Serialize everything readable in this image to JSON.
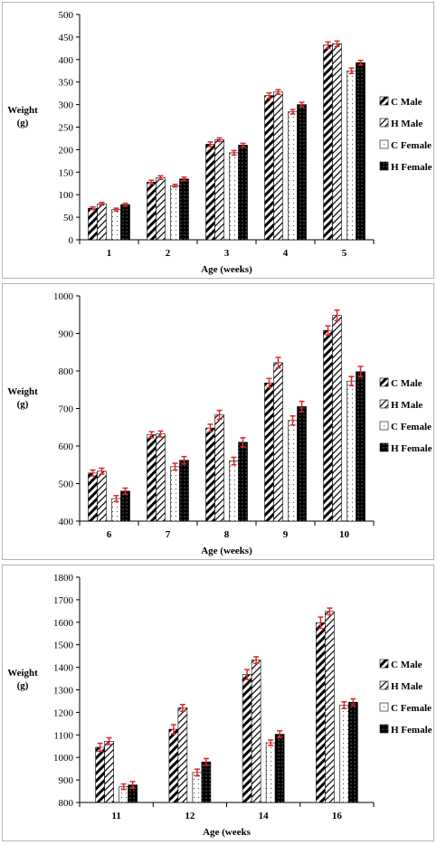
{
  "legend": [
    "C Male",
    "H Male",
    "C Female",
    "H Female"
  ],
  "error_bar_color": "#e0262b",
  "chart_data": [
    {
      "type": "bar",
      "xlabel": "Age (weeks)",
      "ylabel": [
        "Weight",
        "(g)"
      ],
      "ylim": [
        0,
        500
      ],
      "yticks": [
        0,
        50,
        100,
        150,
        200,
        250,
        300,
        350,
        400,
        450,
        500
      ],
      "categories": [
        "1",
        "2",
        "3",
        "4",
        "5"
      ],
      "series": [
        {
          "name": "C Male",
          "values": [
            70,
            128,
            212,
            320,
            432
          ],
          "errors": [
            3,
            4,
            5,
            6,
            7
          ]
        },
        {
          "name": "H Male",
          "values": [
            80,
            138,
            222,
            328,
            435
          ],
          "errors": [
            3,
            4,
            4,
            5,
            6
          ]
        },
        {
          "name": "C Female",
          "values": [
            67,
            120,
            193,
            284,
            375
          ],
          "errors": [
            3,
            3,
            5,
            5,
            6
          ]
        },
        {
          "name": "H Female",
          "values": [
            78,
            135,
            210,
            300,
            393
          ],
          "errors": [
            3,
            4,
            4,
            5,
            5
          ]
        }
      ]
    },
    {
      "type": "bar",
      "xlabel": "Age (weeks)",
      "ylabel": [
        "Weight",
        "(g)"
      ],
      "ylim": [
        400,
        1000
      ],
      "yticks": [
        400,
        500,
        600,
        700,
        800,
        900,
        1000
      ],
      "categories": [
        "6",
        "7",
        "8",
        "9",
        "10"
      ],
      "series": [
        {
          "name": "C Male",
          "values": [
            528,
            630,
            648,
            768,
            908
          ],
          "errors": [
            8,
            8,
            10,
            12,
            12
          ]
        },
        {
          "name": "H Male",
          "values": [
            533,
            632,
            683,
            822,
            948
          ],
          "errors": [
            8,
            8,
            12,
            14,
            14
          ]
        },
        {
          "name": "C Female",
          "values": [
            460,
            545,
            560,
            668,
            773
          ],
          "errors": [
            8,
            9,
            10,
            12,
            12
          ]
        },
        {
          "name": "H Female",
          "values": [
            480,
            562,
            610,
            705,
            798
          ],
          "errors": [
            8,
            10,
            12,
            14,
            14
          ]
        }
      ]
    },
    {
      "type": "bar",
      "xlabel": "Age (weeks",
      "ylabel": [
        "Weight",
        "(g)"
      ],
      "ylim": [
        800,
        1800
      ],
      "yticks": [
        800,
        900,
        1000,
        1100,
        1200,
        1300,
        1400,
        1500,
        1600,
        1700,
        1800
      ],
      "categories": [
        "11",
        "12",
        "14",
        "16"
      ],
      "series": [
        {
          "name": "C Male",
          "values": [
            1045,
            1125,
            1368,
            1598
          ],
          "errors": [
            18,
            20,
            22,
            25
          ]
        },
        {
          "name": "H Male",
          "values": [
            1072,
            1220,
            1432,
            1648
          ],
          "errors": [
            15,
            15,
            15,
            15
          ]
        },
        {
          "name": "C Female",
          "values": [
            870,
            933,
            1065,
            1232
          ],
          "errors": [
            12,
            15,
            12,
            15
          ]
        },
        {
          "name": "H Female",
          "values": [
            878,
            980,
            1103,
            1245
          ],
          "errors": [
            15,
            15,
            15,
            15
          ]
        }
      ]
    }
  ]
}
